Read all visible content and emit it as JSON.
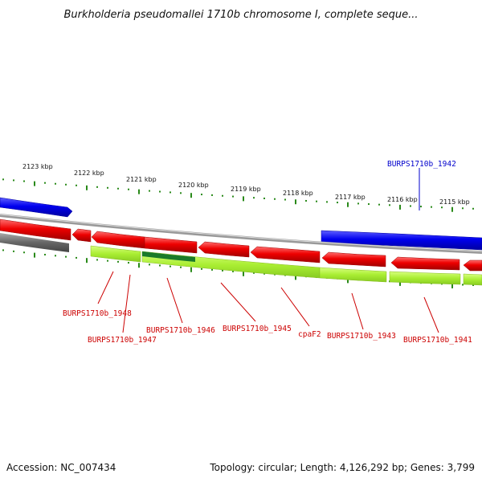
{
  "title": "Burkholderia pseudomallei 1710b chromosome I, complete seque...",
  "accession": "Accession: NC_007434",
  "summary": "Topology: circular; Length: 4,126,292 bp; Genes: 3,799",
  "colors": {
    "forward_gene": "#0000ee",
    "reverse_gene": "#ee0000",
    "reverse_gene_light": "#ff8080",
    "cds_band": "#aaee33",
    "cds_band_dark": "#1a7a2a",
    "backbone": "#888888",
    "tick": "#2a8a1a",
    "label_red": "#cc0000",
    "label_blue": "#0000cc"
  },
  "kbp_ticks": [
    "2123 kbp",
    "2122 kbp",
    "2121 kbp",
    "2120 kbp",
    "2119 kbp",
    "2118 kbp",
    "2117 kbp",
    "2116 kbp",
    "2115 kbp"
  ],
  "gene_labels": [
    {
      "name": "BURPS1710b_1942",
      "strand": "forward"
    },
    {
      "name": "BURPS1710b_1948",
      "strand": "reverse"
    },
    {
      "name": "BURPS1710b_1947",
      "strand": "reverse"
    },
    {
      "name": "BURPS1710b_1946",
      "strand": "reverse"
    },
    {
      "name": "BURPS1710b_1945",
      "strand": "reverse"
    },
    {
      "name": "cpaF2",
      "strand": "reverse"
    },
    {
      "name": "BURPS1710b_1943",
      "strand": "reverse"
    },
    {
      "name": "BURPS1710b_1941",
      "strand": "reverse"
    }
  ]
}
